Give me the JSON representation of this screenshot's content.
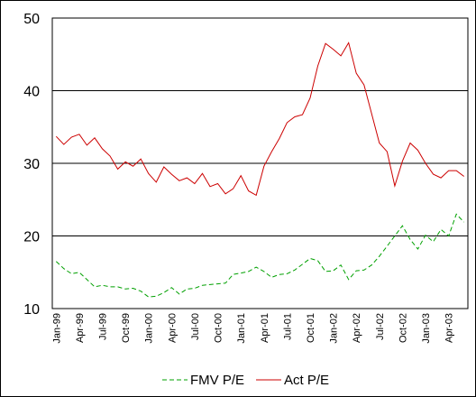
{
  "chart_data": {
    "type": "line",
    "title": "",
    "xlabel": "",
    "ylabel": "",
    "ylim": [
      10,
      50
    ],
    "yticks": [
      "10",
      "20",
      "30",
      "40",
      "50"
    ],
    "xtick_labels": [
      "Jan-99",
      "Apr-99",
      "Jul-99",
      "Oct-99",
      "Jan-00",
      "Apr-00",
      "Jul-00",
      "Oct-00",
      "Jan-01",
      "Apr-01",
      "Jul-01",
      "Oct-01",
      "Jan-02",
      "Apr-02",
      "Jul-02",
      "Oct-02",
      "Jan-03",
      "Apr-03"
    ],
    "x": [
      "Jan-99",
      "Feb-99",
      "Mar-99",
      "Apr-99",
      "May-99",
      "Jun-99",
      "Jul-99",
      "Aug-99",
      "Sep-99",
      "Oct-99",
      "Nov-99",
      "Dec-99",
      "Jan-00",
      "Feb-00",
      "Mar-00",
      "Apr-00",
      "May-00",
      "Jun-00",
      "Jul-00",
      "Aug-00",
      "Sep-00",
      "Oct-00",
      "Nov-00",
      "Dec-00",
      "Jan-01",
      "Feb-01",
      "Mar-01",
      "Apr-01",
      "May-01",
      "Jun-01",
      "Jul-01",
      "Aug-01",
      "Sep-01",
      "Oct-01",
      "Nov-01",
      "Dec-01",
      "Jan-02",
      "Feb-02",
      "Mar-02",
      "Apr-02",
      "May-02",
      "Jun-02",
      "Jul-02",
      "Aug-02",
      "Sep-02",
      "Oct-02",
      "Nov-02",
      "Dec-02",
      "Jan-03",
      "Feb-03",
      "Mar-03",
      "Apr-03",
      "May-03",
      "Jun-03"
    ],
    "grid": "horizontal",
    "legend_position": "bottom",
    "series": [
      {
        "name": "FMV P/E",
        "color": "#00a000",
        "dash": "dashed",
        "values": [
          16.5,
          15.5,
          14.8,
          15.0,
          14.0,
          13.0,
          13.2,
          13.0,
          13.0,
          12.7,
          12.8,
          12.4,
          11.6,
          11.7,
          12.2,
          12.9,
          12.0,
          12.7,
          12.8,
          13.2,
          13.3,
          13.4,
          13.5,
          14.7,
          14.9,
          15.1,
          15.7,
          15.1,
          14.3,
          14.7,
          14.8,
          15.3,
          16.1,
          16.9,
          16.6,
          15.1,
          15.2,
          16.0,
          14.0,
          15.2,
          15.3,
          16.0,
          17.2,
          18.6,
          20.0,
          21.4,
          19.5,
          18.2,
          20.1,
          19.2,
          20.9,
          20.0,
          23.0,
          21.9
        ]
      },
      {
        "name": "Act P/E",
        "color": "#cc0000",
        "dash": "solid",
        "values": [
          33.7,
          32.6,
          33.6,
          34.0,
          32.5,
          33.5,
          32.0,
          31.0,
          29.2,
          30.2,
          29.6,
          30.6,
          28.6,
          27.4,
          29.5,
          28.5,
          27.6,
          28.0,
          27.2,
          28.6,
          26.8,
          27.2,
          25.8,
          26.5,
          28.3,
          26.2,
          25.6,
          29.6,
          31.6,
          33.4,
          35.6,
          36.4,
          36.7,
          39.0,
          43.4,
          46.5,
          45.7,
          44.8,
          46.6,
          42.4,
          40.8,
          36.8,
          32.8,
          31.6,
          26.9,
          30.3,
          32.8,
          31.8,
          30.0,
          28.5,
          28.0,
          29.0,
          29.0,
          28.2
        ]
      }
    ]
  }
}
